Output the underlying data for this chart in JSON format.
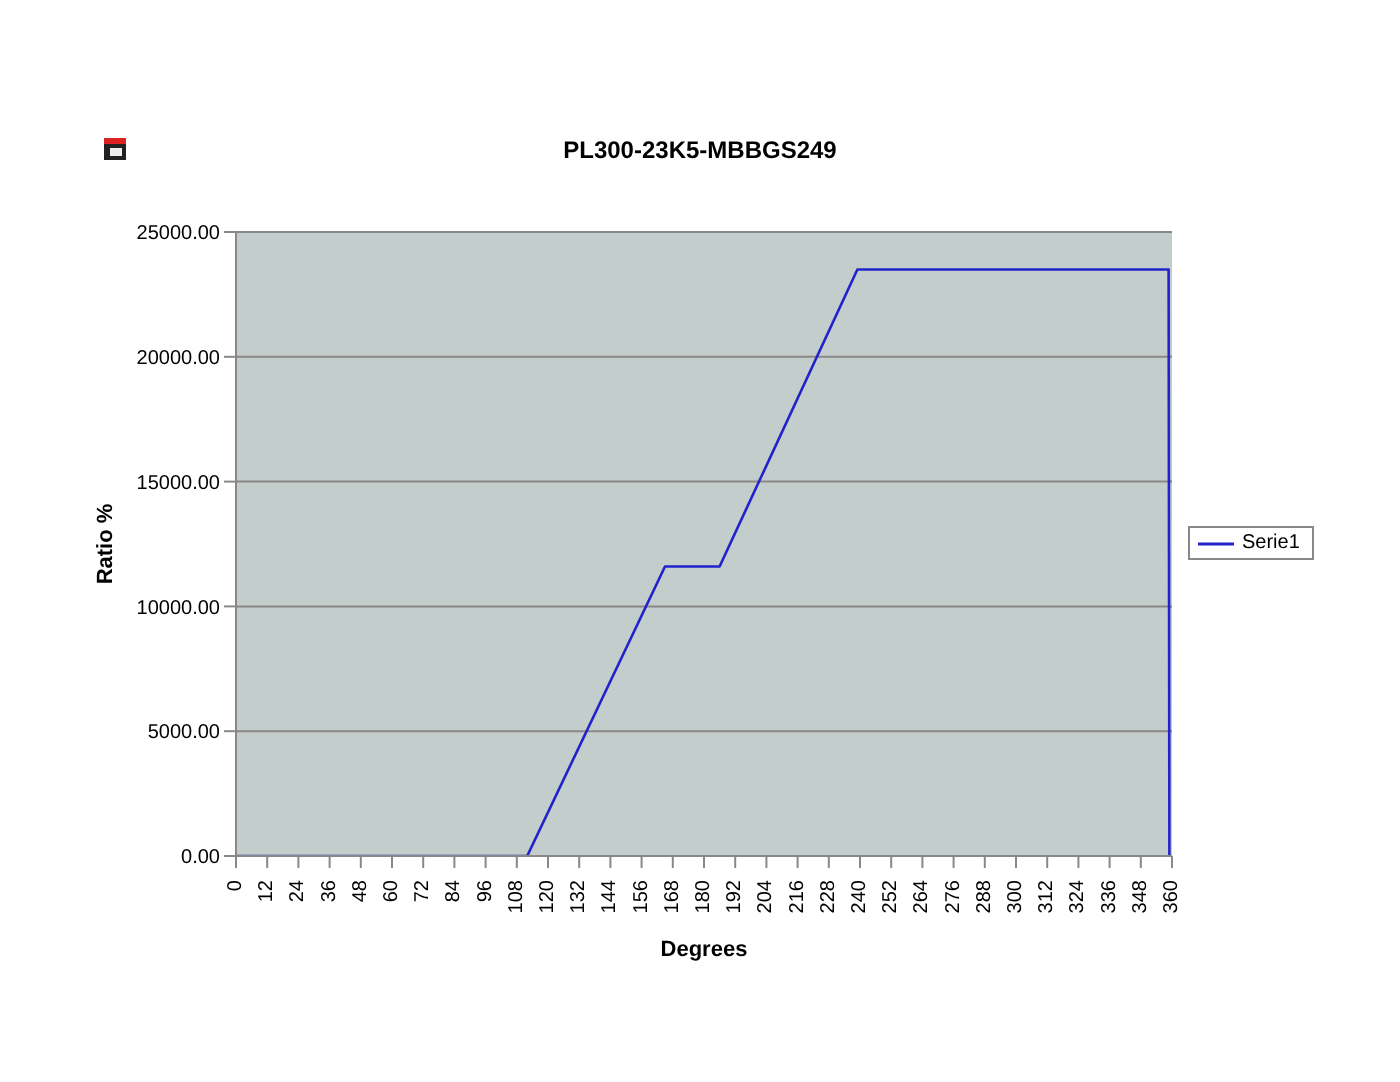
{
  "chart_data": {
    "type": "line",
    "title": "PL300-23K5-MBBGS249",
    "xlabel": "Degrees",
    "ylabel": "Ratio %",
    "x": [
      0,
      112,
      165,
      186,
      239,
      358.7,
      359
    ],
    "series": [
      {
        "name": "Serie1",
        "color": "#2222cc",
        "values": [
          0,
          0,
          11600,
          11600,
          23500,
          23500,
          0
        ]
      }
    ],
    "xlim": [
      0,
      360
    ],
    "xticks": [
      0,
      12,
      24,
      36,
      48,
      60,
      72,
      84,
      96,
      108,
      120,
      132,
      144,
      156,
      168,
      180,
      192,
      204,
      216,
      228,
      240,
      252,
      264,
      276,
      288,
      300,
      312,
      324,
      336,
      348,
      360
    ],
    "ylim": [
      0,
      25000
    ],
    "yticks": [
      {
        "value": 0,
        "label": "0.00"
      },
      {
        "value": 5000,
        "label": "5000.00"
      },
      {
        "value": 10000,
        "label": "10000.00"
      },
      {
        "value": 15000,
        "label": "15000.00"
      },
      {
        "value": 20000,
        "label": "20000.00"
      },
      {
        "value": 25000,
        "label": "25000.00"
      }
    ],
    "grid": "y",
    "legend": "right",
    "marker": "none",
    "line_style": "solid"
  }
}
